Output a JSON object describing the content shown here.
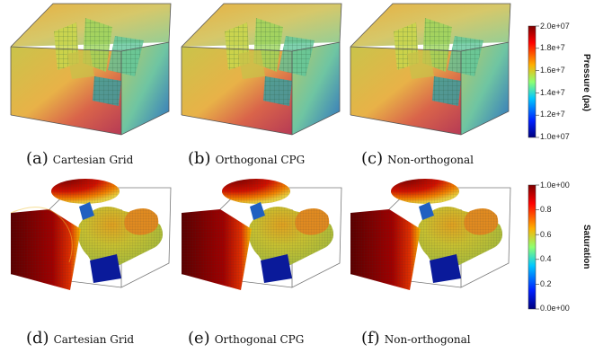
{
  "top_row": {
    "captions": [
      {
        "letter": "(a)",
        "name": "Cartesian Grid"
      },
      {
        "letter": "(b)",
        "name": "Orthogonal CPG"
      },
      {
        "letter": "(c)",
        "name": "Non-orthogonal"
      }
    ],
    "colorbar": {
      "title": "Pressure (pa)",
      "ticks": [
        "2.0e+07",
        "1.8e+7",
        "1.6e+7",
        "1.4e+7",
        "1.2e+7",
        "1.0e+07"
      ],
      "min": 10000000,
      "max": 20000000
    }
  },
  "bottom_row": {
    "captions": [
      {
        "letter": "(d)",
        "name": "Cartesian Grid"
      },
      {
        "letter": "(e)",
        "name": "Orthogonal CPG"
      },
      {
        "letter": "(f)",
        "name": "Non-orthogonal"
      }
    ],
    "colorbar": {
      "title": "Saturation",
      "ticks": [
        "1.0e+00",
        "0.8",
        "0.6",
        "0.4",
        "0.2",
        "0.0e+00"
      ],
      "min": 0,
      "max": 1
    }
  },
  "colors": {
    "jet_low": "#00007f",
    "jet_mid": "#7fff7f",
    "jet_high": "#7f0000",
    "fracture": "#3a8a6a",
    "frame": "#555555"
  }
}
